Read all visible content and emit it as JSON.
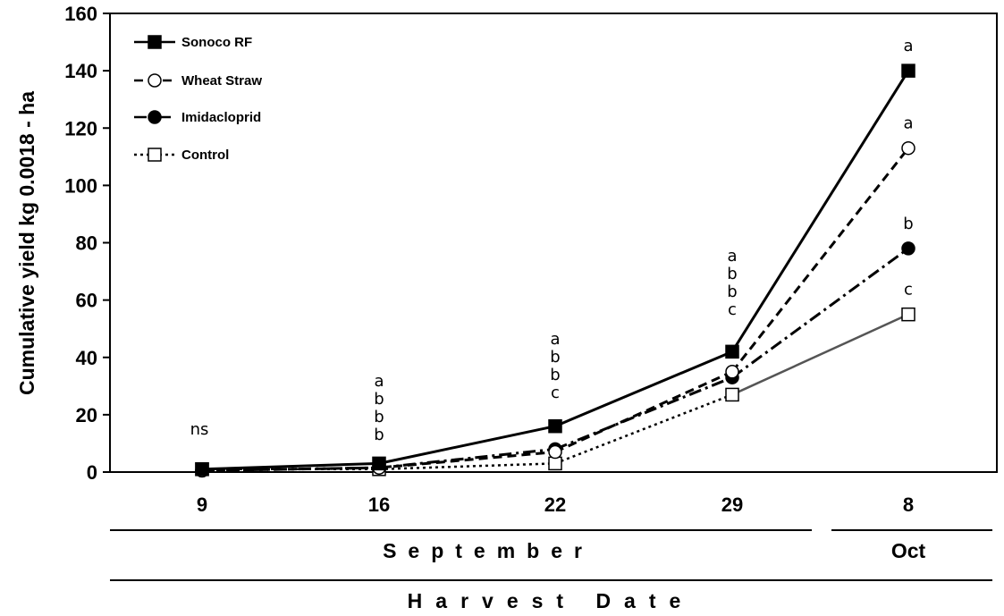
{
  "chart_data": {
    "type": "line",
    "ylabel": "Cumulative yield kg 0.0018 - ha",
    "xlabel": "Harvest Date",
    "ylim": [
      0,
      160
    ],
    "yticks": [
      0,
      20,
      40,
      60,
      80,
      100,
      120,
      140,
      160
    ],
    "categories": [
      "9",
      "16",
      "22",
      "29",
      "8"
    ],
    "month_groups": [
      {
        "label": "September",
        "categories": [
          "9",
          "16",
          "22",
          "29"
        ]
      },
      {
        "label": "Oct",
        "categories": [
          "8"
        ]
      }
    ],
    "legend_position": "top-left",
    "series": [
      {
        "name": "Sonoco RF",
        "values": [
          1,
          3,
          16,
          42,
          140
        ],
        "line": "solid",
        "marker": "square-filled",
        "color": "#000000"
      },
      {
        "name": "Wheat Straw",
        "values": [
          0.5,
          1.5,
          7,
          35,
          113
        ],
        "line": "dashed",
        "marker": "circle-open",
        "color": "#000000"
      },
      {
        "name": "Imidacloprid",
        "values": [
          0.5,
          1.5,
          8,
          33,
          78
        ],
        "line": "dashdot",
        "marker": "circle-filled",
        "color": "#000000"
      },
      {
        "name": "Control",
        "values": [
          1,
          1,
          3,
          27,
          55
        ],
        "line": "dotted",
        "marker": "square-open",
        "color": "#000000"
      }
    ],
    "annotations": [
      {
        "category": "9",
        "letters": [
          "ns"
        ]
      },
      {
        "category": "16",
        "letters": [
          "a",
          "b",
          "b",
          "b"
        ]
      },
      {
        "category": "22",
        "letters": [
          "a",
          "b",
          "b",
          "c"
        ]
      },
      {
        "category": "29",
        "letters": [
          "a",
          "b",
          "b",
          "c"
        ]
      },
      {
        "category": "8",
        "letters": [
          "a"
        ],
        "series": "Sonoco RF"
      },
      {
        "category": "8",
        "letters": [
          "a"
        ],
        "series": "Wheat Straw"
      },
      {
        "category": "8",
        "letters": [
          "b"
        ],
        "series": "Imidacloprid"
      },
      {
        "category": "8",
        "letters": [
          "c"
        ],
        "series": "Control"
      }
    ]
  }
}
